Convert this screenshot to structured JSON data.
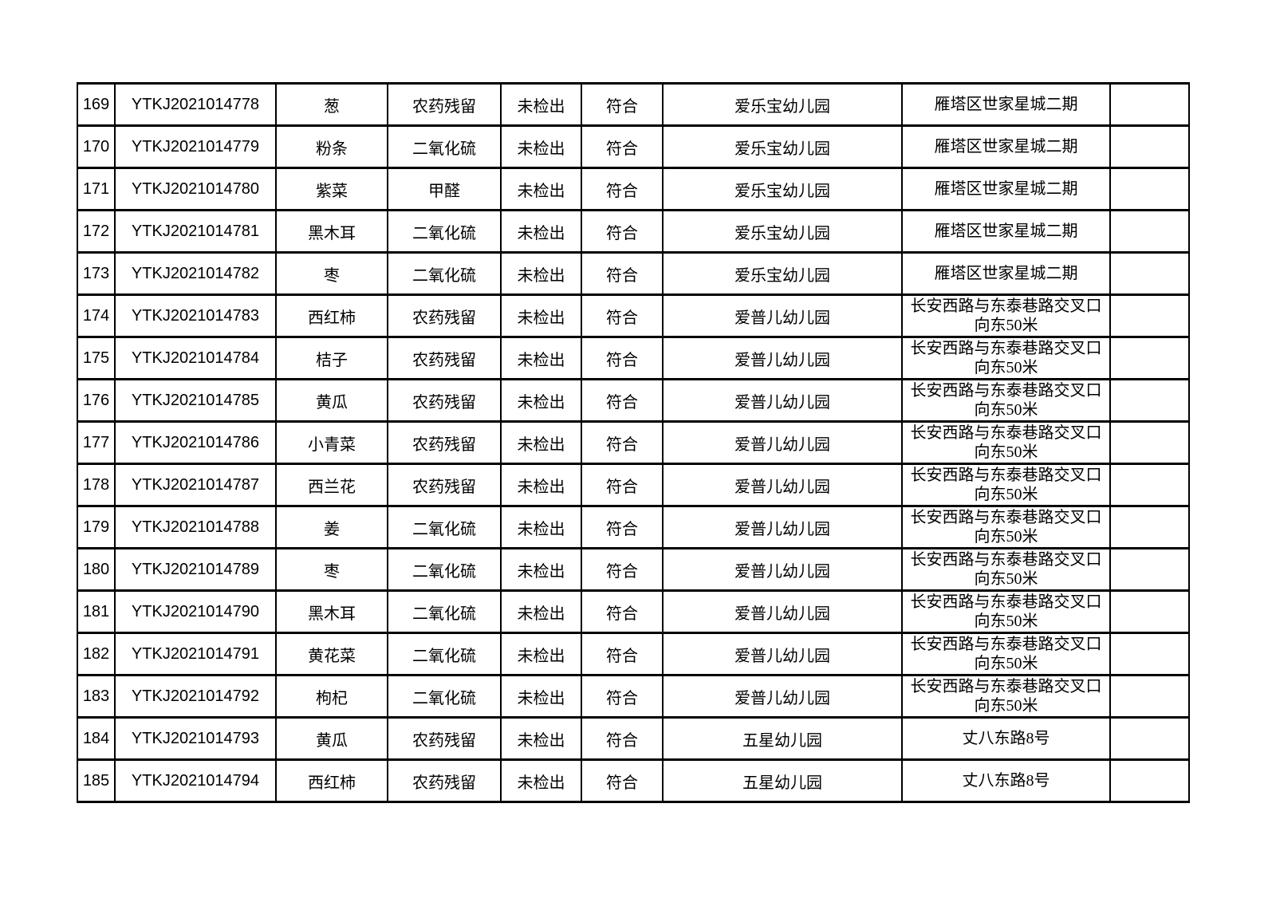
{
  "colors": {
    "page_background": "#ffffff",
    "border": "#000000",
    "text": "#000000"
  },
  "table": {
    "rows": [
      {
        "no": "169",
        "sample_id": "YTKJ2021014778",
        "item": "葱",
        "test_item": "农药残留",
        "result": "未检出",
        "conclusion": "符合",
        "org": "爱乐宝幼儿园",
        "address": "雁塔区世家星城二期",
        "remark": ""
      },
      {
        "no": "170",
        "sample_id": "YTKJ2021014779",
        "item": "粉条",
        "test_item": "二氧化硫",
        "result": "未检出",
        "conclusion": "符合",
        "org": "爱乐宝幼儿园",
        "address": "雁塔区世家星城二期",
        "remark": ""
      },
      {
        "no": "171",
        "sample_id": "YTKJ2021014780",
        "item": "紫菜",
        "test_item": "甲醛",
        "result": "未检出",
        "conclusion": "符合",
        "org": "爱乐宝幼儿园",
        "address": "雁塔区世家星城二期",
        "remark": ""
      },
      {
        "no": "172",
        "sample_id": "YTKJ2021014781",
        "item": "黑木耳",
        "test_item": "二氧化硫",
        "result": "未检出",
        "conclusion": "符合",
        "org": "爱乐宝幼儿园",
        "address": "雁塔区世家星城二期",
        "remark": ""
      },
      {
        "no": "173",
        "sample_id": "YTKJ2021014782",
        "item": "枣",
        "test_item": "二氧化硫",
        "result": "未检出",
        "conclusion": "符合",
        "org": "爱乐宝幼儿园",
        "address": "雁塔区世家星城二期",
        "remark": ""
      },
      {
        "no": "174",
        "sample_id": "YTKJ2021014783",
        "item": "西红柿",
        "test_item": "农药残留",
        "result": "未检出",
        "conclusion": "符合",
        "org": "爱普儿幼儿园",
        "address": "长安西路与东泰巷路交叉口向东50米",
        "remark": ""
      },
      {
        "no": "175",
        "sample_id": "YTKJ2021014784",
        "item": "桔子",
        "test_item": "农药残留",
        "result": "未检出",
        "conclusion": "符合",
        "org": "爱普儿幼儿园",
        "address": "长安西路与东泰巷路交叉口向东50米",
        "remark": ""
      },
      {
        "no": "176",
        "sample_id": "YTKJ2021014785",
        "item": "黄瓜",
        "test_item": "农药残留",
        "result": "未检出",
        "conclusion": "符合",
        "org": "爱普儿幼儿园",
        "address": "长安西路与东泰巷路交叉口向东50米",
        "remark": ""
      },
      {
        "no": "177",
        "sample_id": "YTKJ2021014786",
        "item": "小青菜",
        "test_item": "农药残留",
        "result": "未检出",
        "conclusion": "符合",
        "org": "爱普儿幼儿园",
        "address": "长安西路与东泰巷路交叉口向东50米",
        "remark": ""
      },
      {
        "no": "178",
        "sample_id": "YTKJ2021014787",
        "item": "西兰花",
        "test_item": "农药残留",
        "result": "未检出",
        "conclusion": "符合",
        "org": "爱普儿幼儿园",
        "address": "长安西路与东泰巷路交叉口向东50米",
        "remark": ""
      },
      {
        "no": "179",
        "sample_id": "YTKJ2021014788",
        "item": "姜",
        "test_item": "二氧化硫",
        "result": "未检出",
        "conclusion": "符合",
        "org": "爱普儿幼儿园",
        "address": "长安西路与东泰巷路交叉口向东50米",
        "remark": ""
      },
      {
        "no": "180",
        "sample_id": "YTKJ2021014789",
        "item": "枣",
        "test_item": "二氧化硫",
        "result": "未检出",
        "conclusion": "符合",
        "org": "爱普儿幼儿园",
        "address": "长安西路与东泰巷路交叉口向东50米",
        "remark": ""
      },
      {
        "no": "181",
        "sample_id": "YTKJ2021014790",
        "item": "黑木耳",
        "test_item": "二氧化硫",
        "result": "未检出",
        "conclusion": "符合",
        "org": "爱普儿幼儿园",
        "address": "长安西路与东泰巷路交叉口向东50米",
        "remark": ""
      },
      {
        "no": "182",
        "sample_id": "YTKJ2021014791",
        "item": "黄花菜",
        "test_item": "二氧化硫",
        "result": "未检出",
        "conclusion": "符合",
        "org": "爱普儿幼儿园",
        "address": "长安西路与东泰巷路交叉口向东50米",
        "remark": ""
      },
      {
        "no": "183",
        "sample_id": "YTKJ2021014792",
        "item": "枸杞",
        "test_item": "二氧化硫",
        "result": "未检出",
        "conclusion": "符合",
        "org": "爱普儿幼儿园",
        "address": "长安西路与东泰巷路交叉口向东50米",
        "remark": ""
      },
      {
        "no": "184",
        "sample_id": "YTKJ2021014793",
        "item": "黄瓜",
        "test_item": "农药残留",
        "result": "未检出",
        "conclusion": "符合",
        "org": "五星幼儿园",
        "address": "丈八东路8号",
        "remark": ""
      },
      {
        "no": "185",
        "sample_id": "YTKJ2021014794",
        "item": "西红柿",
        "test_item": "农药残留",
        "result": "未检出",
        "conclusion": "符合",
        "org": "五星幼儿园",
        "address": "丈八东路8号",
        "remark": ""
      }
    ]
  }
}
